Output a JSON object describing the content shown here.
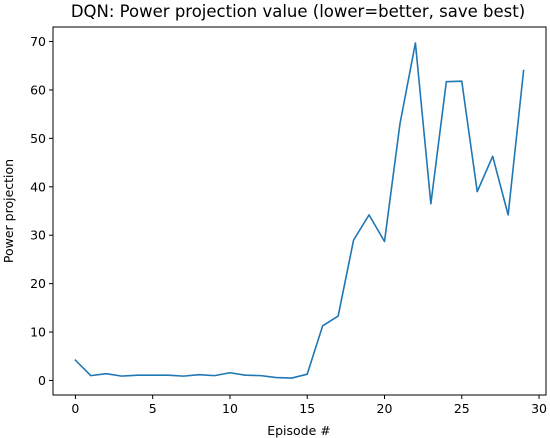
{
  "chart_data": {
    "type": "line",
    "title": "DQN: Power projection value (lower=better, save best)",
    "xlabel": "Episode #",
    "ylabel": "Power projection",
    "xlim": [
      -1.45,
      30.45
    ],
    "ylim": [
      -3.0,
      73.0
    ],
    "xticks": [
      0,
      5,
      10,
      15,
      20,
      25,
      30
    ],
    "yticks": [
      0,
      10,
      20,
      30,
      40,
      50,
      60,
      70
    ],
    "grid": false,
    "series": [
      {
        "color": "#1f77b4",
        "x": [
          0,
          1,
          2,
          3,
          4,
          5,
          6,
          7,
          8,
          9,
          10,
          11,
          12,
          13,
          14,
          15,
          16,
          17,
          18,
          19,
          20,
          21,
          22,
          23,
          24,
          25,
          26,
          27,
          28,
          29
        ],
        "y": [
          4.2,
          1.0,
          1.4,
          0.9,
          1.1,
          1.1,
          1.1,
          0.9,
          1.2,
          1.0,
          1.6,
          1.1,
          1.0,
          0.6,
          0.5,
          1.3,
          11.3,
          13.3,
          29.0,
          34.2,
          28.7,
          53.0,
          69.7,
          36.5,
          61.7,
          61.8,
          39.0,
          46.3,
          34.2,
          64.0
        ]
      }
    ]
  }
}
